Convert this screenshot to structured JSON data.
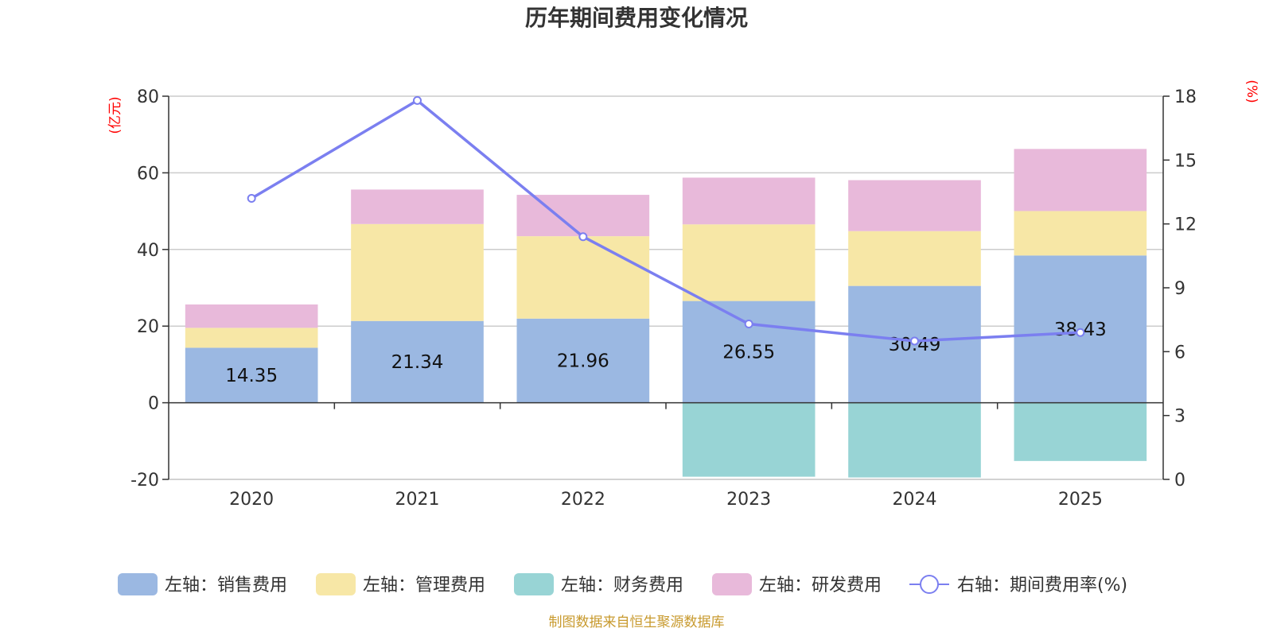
{
  "chart_data": {
    "type": "bar",
    "title": "历年期间费用变化情况",
    "categories": [
      "2020",
      "2021",
      "2022",
      "2023",
      "2024",
      "2025"
    ],
    "left_axis": {
      "unit": "(亿元)",
      "ylim": [
        -20,
        80
      ],
      "ticks": [
        "-20",
        "0",
        "20",
        "40",
        "60",
        "80"
      ]
    },
    "right_axis": {
      "unit": "(%)",
      "ylim": [
        0,
        18
      ],
      "ticks": [
        "0",
        "3",
        "6",
        "9",
        "12",
        "15",
        "18"
      ]
    },
    "series": [
      {
        "name": "左轴：销售费用",
        "kind": "bar",
        "color": "#9bb8e2",
        "values": [
          14.35,
          21.34,
          21.96,
          26.55,
          30.49,
          38.43
        ],
        "labels": [
          "14.35",
          "21.34",
          "21.96",
          "26.55",
          "30.49",
          "38.43"
        ]
      },
      {
        "name": "左轴：管理费用",
        "kind": "bar",
        "color": "#f7e7a6",
        "values": [
          5.2,
          25.3,
          21.5,
          20.0,
          14.3,
          11.6
        ]
      },
      {
        "name": "左轴：财务费用",
        "kind": "bar",
        "color": "#98d4d5",
        "values": [
          0,
          0,
          0,
          -19.3,
          -19.5,
          -15.2
        ]
      },
      {
        "name": "左轴：研发费用",
        "kind": "bar",
        "color": "#e8b9da",
        "values": [
          6.1,
          9.0,
          10.8,
          12.2,
          13.3,
          16.2
        ]
      },
      {
        "name": "右轴：期间费用率(%)",
        "kind": "line",
        "axis": "right",
        "color": "#7b7ff0",
        "values": [
          13.2,
          17.8,
          11.4,
          7.3,
          6.5,
          6.9
        ]
      }
    ],
    "legend_position": "bottom",
    "grid": true
  },
  "source_text": "制图数据来自恒生聚源数据库"
}
